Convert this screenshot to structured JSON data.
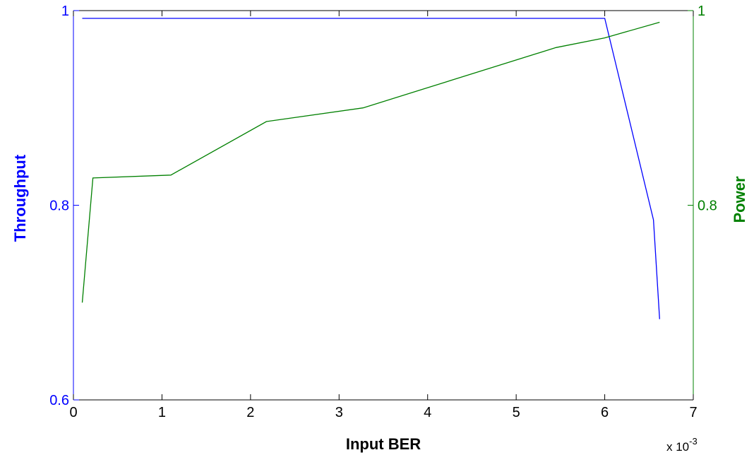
{
  "chart_data": {
    "type": "line",
    "xlabel": "Input BER",
    "x_exponent_base": "x 10",
    "x_exponent_power": "-3",
    "xlim": [
      0,
      7
    ],
    "x_ticks": [
      0,
      1,
      2,
      3,
      4,
      5,
      6,
      7
    ],
    "x_tick_labels": [
      "0",
      "1",
      "2",
      "3",
      "4",
      "5",
      "6",
      "7"
    ],
    "y_left": {
      "label": "Throughput",
      "ylim": [
        0.6,
        1.0
      ],
      "ticks": [
        0.6,
        0.8,
        1.0
      ],
      "tick_labels": [
        "0.6",
        "0.8",
        "1"
      ],
      "color": "#0000ff"
    },
    "y_right": {
      "label": "Power",
      "ylim": [
        0.6,
        1.0
      ],
      "ticks": [
        0.8,
        1.0
      ],
      "tick_labels": [
        "0.8",
        "1"
      ],
      "color": "#008000"
    },
    "series": [
      {
        "axis": "left",
        "color": "#0000ff",
        "x": [
          0.1,
          6.0,
          6.55,
          6.62
        ],
        "values": [
          0.992,
          0.992,
          0.785,
          0.683
        ]
      },
      {
        "axis": "right",
        "color": "#008000",
        "x": [
          0.1,
          0.22,
          1.1,
          2.18,
          3.27,
          5.45,
          6.0,
          6.62
        ],
        "values": [
          0.7,
          0.828,
          0.831,
          0.886,
          0.9,
          0.962,
          0.972,
          0.988
        ]
      }
    ],
    "grid": false,
    "legend": "none"
  }
}
